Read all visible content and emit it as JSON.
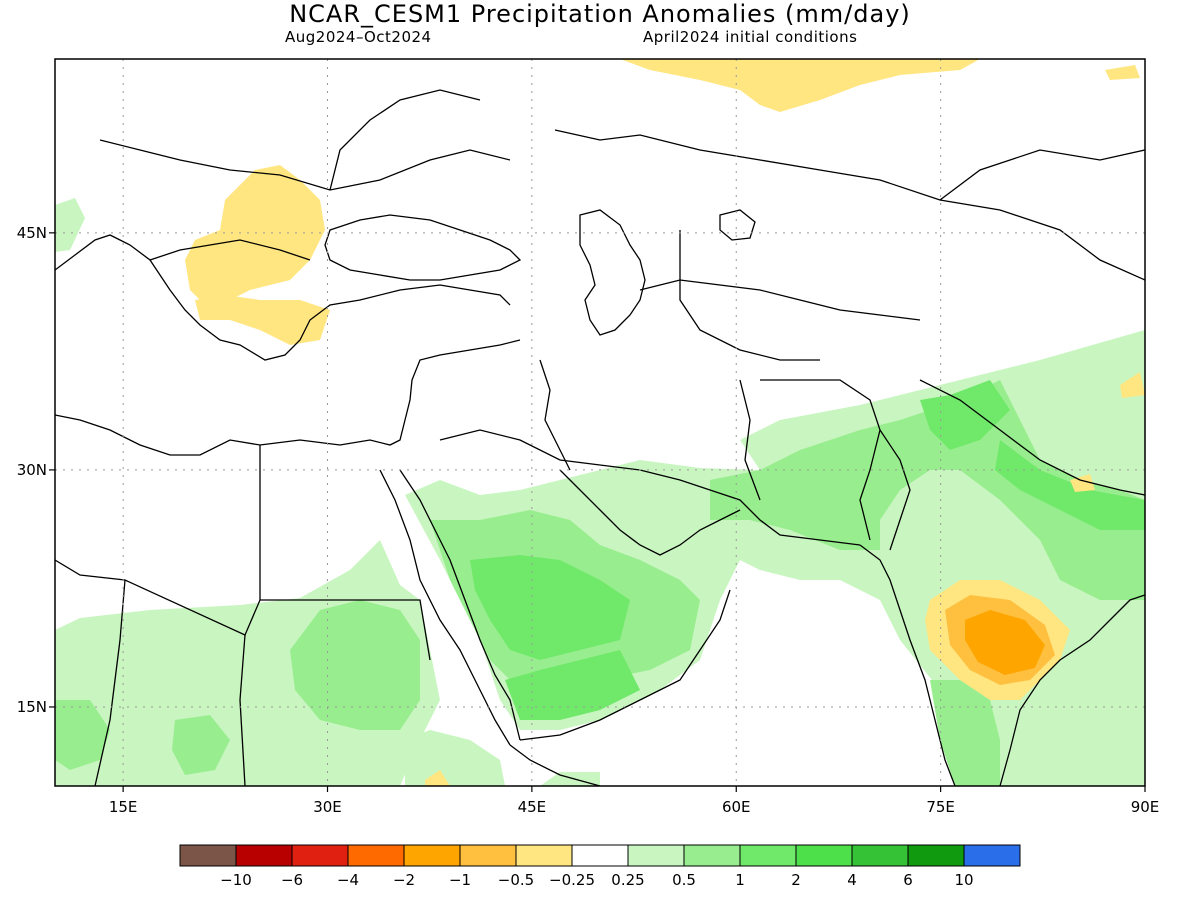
{
  "header": {
    "title": "NCAR_CESM1 Precipitation Anomalies (mm/day)",
    "period": "Aug2024–Oct2024",
    "init": "April2024 initial conditions"
  },
  "axes": {
    "lon_ticks": [
      {
        "value": 15,
        "label": "15E"
      },
      {
        "value": 30,
        "label": "30E"
      },
      {
        "value": 45,
        "label": "45E"
      },
      {
        "value": 60,
        "label": "60E"
      },
      {
        "value": 75,
        "label": "75E"
      },
      {
        "value": 90,
        "label": "90E"
      }
    ],
    "lat_ticks": [
      {
        "value": 45,
        "label": "45N"
      },
      {
        "value": 30,
        "label": "30N"
      },
      {
        "value": 15,
        "label": "15N"
      }
    ],
    "lon_range": [
      10,
      90
    ],
    "lat_range": [
      10,
      56
    ]
  },
  "colorbar": {
    "colors": [
      "#7a5548",
      "#b80000",
      "#e02010",
      "#ff6a00",
      "#ffa500",
      "#ffc040",
      "#ffe680",
      "#ffffff",
      "#c8f5c0",
      "#98ee8e",
      "#70e86a",
      "#4ee04a",
      "#36c236",
      "#109a10",
      "#2a6eea"
    ],
    "labels": [
      "−10",
      "−6",
      "−4",
      "−2",
      "−1",
      "−0.5",
      "−0.25",
      "0.25",
      "0.5",
      "1",
      "2",
      "4",
      "6",
      "10"
    ]
  },
  "colors": {
    "dry_light": "#ffe680",
    "dry_med": "#ffc040",
    "dry_strong": "#ffa500",
    "wet_light": "#c8f5c0",
    "wet_med": "#98ee8e",
    "wet_strong": "#70e86a",
    "wet_heavy": "#4ee04a"
  }
}
